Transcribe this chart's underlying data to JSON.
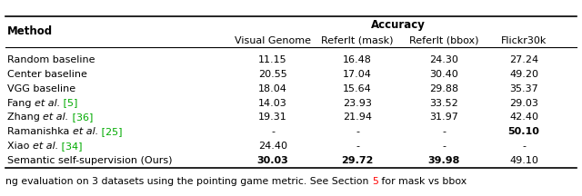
{
  "title": "Accuracy",
  "col_headers": [
    "Method",
    "Visual Genome",
    "ReferIt (mask)",
    "ReferIt (bbox)",
    "Flickr30k"
  ],
  "rows": [
    {
      "method_parts": [
        {
          "text": "Random baseline",
          "style": "normal",
          "color": "#000000"
        }
      ],
      "values": [
        "11.15",
        "16.48",
        "24.30",
        "27.24"
      ],
      "bold": [
        false,
        false,
        false,
        false
      ]
    },
    {
      "method_parts": [
        {
          "text": "Center baseline",
          "style": "normal",
          "color": "#000000"
        }
      ],
      "values": [
        "20.55",
        "17.04",
        "30.40",
        "49.20"
      ],
      "bold": [
        false,
        false,
        false,
        false
      ]
    },
    {
      "method_parts": [
        {
          "text": "VGG baseline",
          "style": "normal",
          "color": "#000000"
        }
      ],
      "values": [
        "18.04",
        "15.64",
        "29.88",
        "35.37"
      ],
      "bold": [
        false,
        false,
        false,
        false
      ]
    },
    {
      "method_parts": [
        {
          "text": "Fang ",
          "style": "normal",
          "color": "#000000"
        },
        {
          "text": "et al.",
          "style": "italic",
          "color": "#000000"
        },
        {
          "text": " [5]",
          "style": "normal",
          "color": "#00aa00"
        }
      ],
      "values": [
        "14.03",
        "23.93",
        "33.52",
        "29.03"
      ],
      "bold": [
        false,
        false,
        false,
        false
      ]
    },
    {
      "method_parts": [
        {
          "text": "Zhang ",
          "style": "normal",
          "color": "#000000"
        },
        {
          "text": "et al.",
          "style": "italic",
          "color": "#000000"
        },
        {
          "text": " [36]",
          "style": "normal",
          "color": "#00aa00"
        }
      ],
      "values": [
        "19.31",
        "21.94",
        "31.97",
        "42.40"
      ],
      "bold": [
        false,
        false,
        false,
        false
      ]
    },
    {
      "method_parts": [
        {
          "text": "Ramanishka ",
          "style": "normal",
          "color": "#000000"
        },
        {
          "text": "et al.",
          "style": "italic",
          "color": "#000000"
        },
        {
          "text": " [25]",
          "style": "normal",
          "color": "#00aa00"
        }
      ],
      "values": [
        "-",
        "-",
        "-",
        "50.10"
      ],
      "bold": [
        false,
        false,
        false,
        true
      ]
    },
    {
      "method_parts": [
        {
          "text": "Xiao ",
          "style": "normal",
          "color": "#000000"
        },
        {
          "text": "et al.",
          "style": "italic",
          "color": "#000000"
        },
        {
          "text": " [34]",
          "style": "normal",
          "color": "#00aa00"
        }
      ],
      "values": [
        "24.40",
        "-",
        "-",
        "-"
      ],
      "bold": [
        false,
        false,
        false,
        false
      ]
    },
    {
      "method_parts": [
        {
          "text": "Semantic self-supervision (Ours)",
          "style": "normal",
          "color": "#000000"
        }
      ],
      "values": [
        "30.03",
        "29.72",
        "39.98",
        "49.10"
      ],
      "bold": [
        true,
        true,
        true,
        false
      ]
    }
  ],
  "caption_parts": [
    {
      "text": "ng evaluation on 3 datasets using the pointing game metric. See Section ",
      "color": "#000000"
    },
    {
      "text": "5",
      "color": "#ff0000"
    },
    {
      "text": " for mask vs bbox",
      "color": "#000000"
    }
  ],
  "ref_color": "#00aa00",
  "bg_color": "#ffffff",
  "text_color": "#000000",
  "font_size": 8.0,
  "header_font_size": 8.5,
  "caption_font_size": 7.8
}
